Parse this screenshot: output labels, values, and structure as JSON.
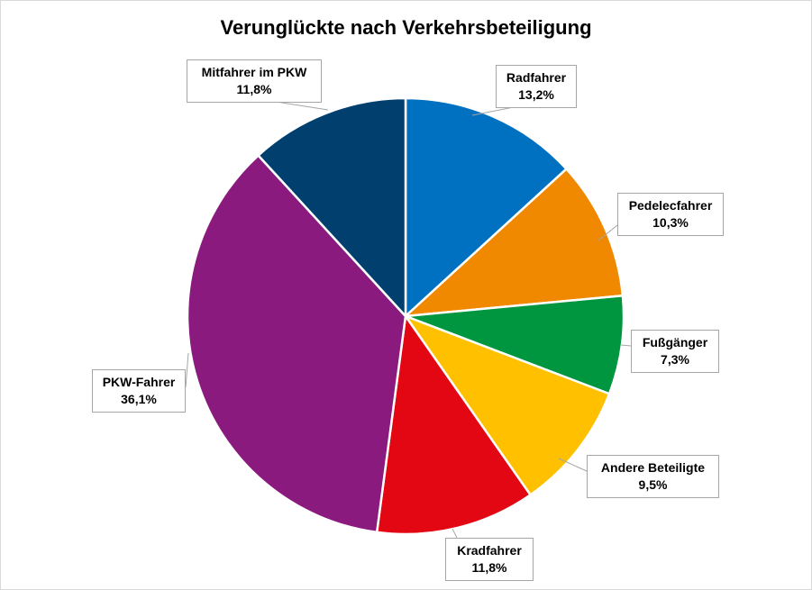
{
  "chart_data": {
    "type": "pie",
    "title": "Verunglückte nach Verkehrsbeteiligung",
    "slices": [
      {
        "label": "Radfahrer",
        "value": 13.2,
        "display": "13,2%",
        "color": "#0070C0"
      },
      {
        "label": "Pedelecfahrer",
        "value": 10.3,
        "display": "10,3%",
        "color": "#F08800"
      },
      {
        "label": "Fußgänger",
        "value": 7.3,
        "display": "7,3%",
        "color": "#00963F"
      },
      {
        "label": "Andere Beteiligte",
        "value": 9.5,
        "display": "9,5%",
        "color": "#FFC000"
      },
      {
        "label": "Kradfahrer",
        "value": 11.8,
        "display": "11,8%",
        "color": "#E30613"
      },
      {
        "label": "PKW-Fahrer",
        "value": 36.1,
        "display": "36,1%",
        "color": "#8A1A7E"
      },
      {
        "label": "Mitfahrer im PKW",
        "value": 11.8,
        "display": "11,8%",
        "color": "#003F6E"
      }
    ],
    "start_angle": "12 o'clock",
    "direction": "clockwise",
    "legend": "none",
    "data_labels": "callouts"
  }
}
